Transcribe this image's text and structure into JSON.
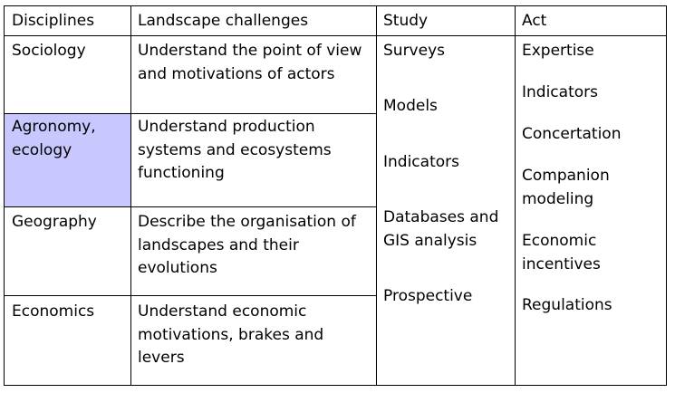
{
  "header": {
    "disciplines": "Disciplines",
    "challenges": "Landscape challenges",
    "study": "Study",
    "act": "Act"
  },
  "rows": [
    {
      "discipline": "Sociology",
      "challenge": "Understand the point of view and motivations of actors"
    },
    {
      "discipline": "Agronomy, ecology",
      "challenge": "Understand production systems and ecosystems functioning"
    },
    {
      "discipline": "Geography",
      "challenge": "Describe the organisation of landscapes and their evolutions"
    },
    {
      "discipline": "Economics",
      "challenge": "Understand economic motivations, brakes and levers"
    }
  ],
  "study_items": [
    "Surveys",
    "Models",
    "Indicators",
    "Databases and GIS analysis",
    "Prospective"
  ],
  "act_items": [
    "Expertise",
    "Indicators",
    "Concertation",
    "Companion modeling",
    "Economic incentives",
    "Regulations"
  ],
  "colors": {
    "highlight": "#c8c8ff"
  }
}
